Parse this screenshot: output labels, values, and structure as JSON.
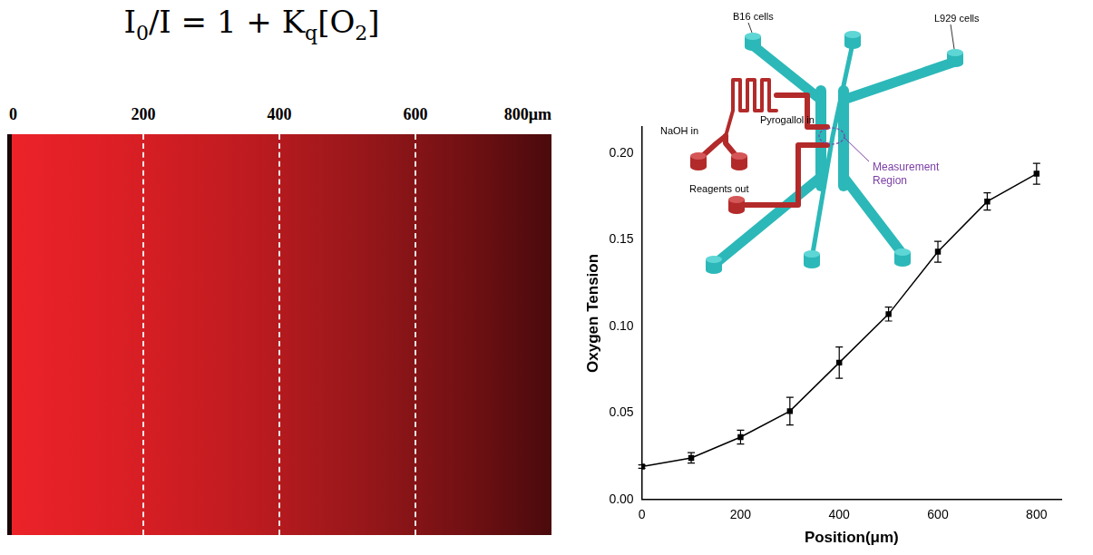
{
  "equation": [
    {
      "text": "I"
    },
    {
      "sub": "0"
    },
    {
      "text": "/I = 1 + K"
    },
    {
      "sub": "q"
    },
    {
      "text": "[O"
    },
    {
      "sub": "2"
    },
    {
      "text": "]"
    }
  ],
  "fluorescence_image": {
    "xlim": [
      0,
      800
    ],
    "ticks": [
      0,
      200,
      400,
      600,
      {
        "value": 800,
        "label": "800μm"
      }
    ],
    "dashed_lines": [
      200,
      400,
      600
    ]
  },
  "diagram": {
    "labels": {
      "b16": "B16 cells",
      "l929": "L929 cells",
      "naoh": "NaOH in",
      "pyrogallol": "Pyrogallol in",
      "measurement": "Measurement Region",
      "out": "Reagents out"
    }
  },
  "chart_data": {
    "type": "line",
    "x_label": "Position(μm)",
    "y_label": "Oxygen Tension",
    "x": [
      0,
      100,
      200,
      300,
      400,
      500,
      600,
      700,
      800
    ],
    "values": [
      0.019,
      0.024,
      0.036,
      0.051,
      0.079,
      0.107,
      0.143,
      0.172,
      0.188
    ],
    "errors": [
      0.001,
      0.003,
      0.004,
      0.008,
      0.009,
      0.004,
      0.006,
      0.005,
      0.006
    ],
    "color": "#000000",
    "marker": "square",
    "line_style": "solid",
    "xlim": [
      0,
      850
    ],
    "xticks": [
      0,
      200,
      400,
      600,
      800
    ],
    "ylim": [
      0,
      0.215
    ],
    "yticks": [
      {
        "value": 0,
        "label": "0.00"
      },
      {
        "value": 0.05,
        "label": "0.05"
      },
      {
        "value": 0.1,
        "label": "0.10"
      },
      {
        "value": 0.15,
        "label": "0.15"
      },
      {
        "value": 0.2,
        "label": "0.20"
      }
    ],
    "grid": false
  }
}
